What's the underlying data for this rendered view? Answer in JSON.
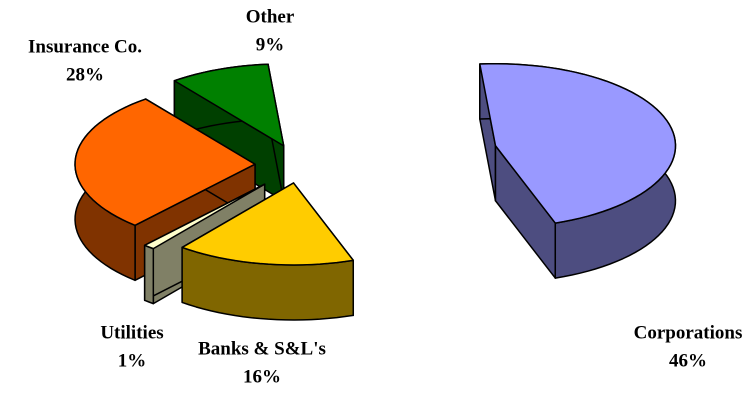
{
  "chart_data": {
    "type": "pie3d",
    "categories": [
      "Corporations",
      "Banks & S&L's",
      "Utilities",
      "Insurance Co.",
      "Other"
    ],
    "values": [
      46,
      16,
      1,
      28,
      9
    ],
    "value_labels": [
      "46%",
      "16%",
      "1%",
      "28%",
      "9%"
    ],
    "colors": [
      "#9999ff",
      "#ffcc00",
      "#ffffcc",
      "#ff6600",
      "#008000"
    ]
  }
}
